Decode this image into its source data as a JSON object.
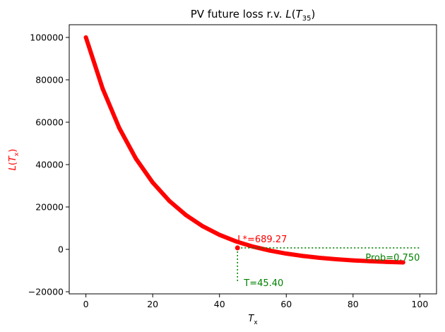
{
  "chart_data": {
    "type": "scatter",
    "title": "PV future loss r.v. L(T₃₅)",
    "title_parts": {
      "main": "PV future loss r.v. ",
      "fn": "L",
      "open": "(",
      "var": "T",
      "sub": "35",
      "close": ")"
    },
    "xlabel": {
      "var": "T",
      "sub": "x"
    },
    "ylabel": {
      "fn": "L",
      "open": "(",
      "var": "T",
      "sub": "x",
      "close": ")",
      "color": "#ff0000"
    },
    "xlim": [
      -5,
      105
    ],
    "ylim": [
      -21000,
      106000
    ],
    "xticks": [
      0,
      20,
      40,
      60,
      80,
      100
    ],
    "yticks": [
      -20000,
      0,
      20000,
      40000,
      60000,
      80000,
      100000
    ],
    "xtick_labels": [
      "0",
      "20",
      "40",
      "60",
      "80",
      "100"
    ],
    "ytick_labels": [
      "−20000",
      "0",
      "20000",
      "40000",
      "60000",
      "80000",
      "100000"
    ],
    "grid": false,
    "series": [
      {
        "color": "#ff0000",
        "marker": "circle",
        "x": [
          0,
          5,
          10,
          15,
          20,
          25,
          30,
          35,
          40,
          45,
          50,
          55,
          60,
          65,
          70,
          75,
          80,
          85,
          90,
          95
        ],
        "y": [
          100000,
          75890,
          57210,
          42740,
          31530,
          22840,
          16110,
          10890,
          6850,
          3730,
          1310,
          -560,
          -2010,
          -3130,
          -4000,
          -4680,
          -5200,
          -5600,
          -5910,
          -6150
        ]
      }
    ],
    "annotations": {
      "L_star": {
        "text": "L*=689.27",
        "value": 689.27,
        "color": "#ff0000"
      },
      "T_star": {
        "text": "T=45.40",
        "value": 45.4,
        "color": "#008000"
      },
      "prob": {
        "text": "Prob=0.750",
        "color": "#008000"
      },
      "hline_x_end": 100,
      "vline_y_end": -16000
    }
  }
}
